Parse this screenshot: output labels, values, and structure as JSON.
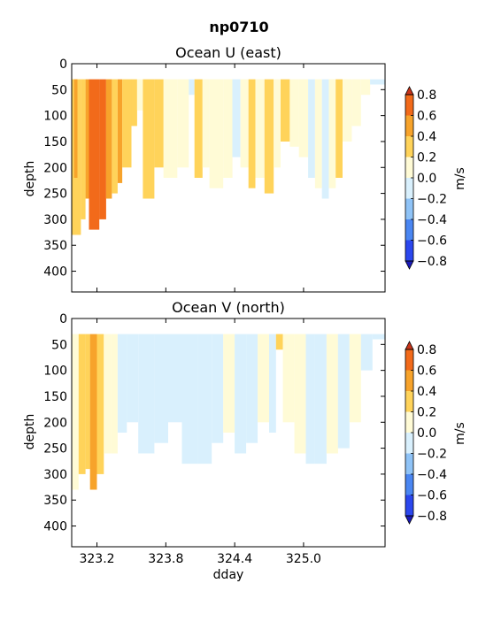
{
  "figure": {
    "suptitle": "np0710"
  },
  "colors": {
    "levels": [
      -0.8,
      -0.6,
      -0.4,
      -0.2,
      0.0,
      0.2,
      0.4,
      0.6,
      0.8
    ],
    "band_colors": [
      "#2b47ee",
      "#4a86f2",
      "#8fc3f7",
      "#d9f0fd",
      "#fffbd6",
      "#ffd35a",
      "#f7a32b",
      "#f26a1a"
    ],
    "under": "#1a1ab8",
    "over": "#c8341a"
  },
  "chart_data": [
    {
      "type": "heatmap",
      "title": "Ocean U (east)",
      "xlabel": "",
      "ylabel": "depth",
      "xlim": [
        322.98,
        325.71
      ],
      "ylim": [
        440,
        0
      ],
      "xticks": [
        323.2,
        323.8,
        324.4,
        325.0
      ],
      "xtick_labels": [
        "",
        "",
        "",
        ""
      ],
      "yticks": [
        0,
        50,
        100,
        150,
        200,
        250,
        300,
        350,
        400
      ],
      "colorbar": {
        "label": "m/s",
        "ticks": [
          "0.8",
          "0.6",
          "0.4",
          "0.2",
          "0.0",
          "−0.2",
          "−0.4",
          "−0.6",
          "−0.8"
        ]
      },
      "top_depth": 30,
      "segments": [
        [
          322.98,
          323.06,
          330,
          0.3
        ],
        [
          323.0,
          323.03,
          220,
          0.5
        ],
        [
          323.06,
          323.1,
          300,
          0.2
        ],
        [
          323.1,
          323.13,
          260,
          0.45
        ],
        [
          323.13,
          323.22,
          320,
          0.65
        ],
        [
          323.22,
          323.28,
          300,
          0.7
        ],
        [
          323.28,
          323.33,
          260,
          0.5
        ],
        [
          323.33,
          323.38,
          250,
          0.3
        ],
        [
          323.38,
          323.42,
          230,
          0.45
        ],
        [
          323.42,
          323.5,
          200,
          0.2
        ],
        [
          323.5,
          323.55,
          120,
          0.3
        ],
        [
          323.55,
          323.6,
          90,
          0.15
        ],
        [
          323.6,
          323.7,
          260,
          0.3
        ],
        [
          323.7,
          323.78,
          200,
          0.25
        ],
        [
          323.78,
          323.9,
          220,
          0.15
        ],
        [
          323.9,
          324.0,
          200,
          0.12
        ],
        [
          324.0,
          324.05,
          60,
          -0.1
        ],
        [
          324.05,
          324.12,
          220,
          0.3
        ],
        [
          324.12,
          324.18,
          200,
          0.15
        ],
        [
          324.18,
          324.3,
          240,
          0.12
        ],
        [
          324.3,
          324.38,
          220,
          0.1
        ],
        [
          324.38,
          324.45,
          180,
          -0.1
        ],
        [
          324.45,
          324.52,
          200,
          0.05
        ],
        [
          324.52,
          324.58,
          240,
          0.3
        ],
        [
          324.58,
          324.66,
          220,
          0.12
        ],
        [
          324.66,
          324.74,
          250,
          0.3
        ],
        [
          324.74,
          324.8,
          200,
          0.12
        ],
        [
          324.8,
          324.88,
          150,
          0.25
        ],
        [
          324.88,
          324.96,
          160,
          0.1
        ],
        [
          324.96,
          325.04,
          180,
          0.06
        ],
        [
          325.04,
          325.1,
          220,
          -0.1
        ],
        [
          325.1,
          325.16,
          240,
          0.12
        ],
        [
          325.16,
          325.22,
          260,
          -0.12
        ],
        [
          325.22,
          325.28,
          240,
          0.1
        ],
        [
          325.28,
          325.34,
          220,
          0.3
        ],
        [
          325.34,
          325.42,
          150,
          0.12
        ],
        [
          325.42,
          325.5,
          120,
          0.05
        ],
        [
          325.5,
          325.58,
          60,
          0.05
        ],
        [
          325.58,
          325.71,
          40,
          -0.05
        ]
      ]
    },
    {
      "type": "heatmap",
      "title": "Ocean V (north)",
      "xlabel": "dday",
      "ylabel": "depth",
      "xlim": [
        322.98,
        325.71
      ],
      "ylim": [
        440,
        0
      ],
      "xticks": [
        323.2,
        323.8,
        324.4,
        325.0
      ],
      "xtick_labels": [
        "323.2",
        "323.8",
        "324.4",
        "325.0"
      ],
      "yticks": [
        0,
        50,
        100,
        150,
        200,
        250,
        300,
        350,
        400
      ],
      "colorbar": {
        "label": "m/s",
        "ticks": [
          "0.8",
          "0.6",
          "0.4",
          "0.2",
          "0.0",
          "−0.2",
          "−0.4",
          "−0.6",
          "−0.8"
        ]
      },
      "top_depth": 30,
      "segments": [
        [
          322.98,
          323.04,
          330,
          0.15
        ],
        [
          323.04,
          323.1,
          300,
          0.3
        ],
        [
          323.1,
          323.14,
          290,
          0.35
        ],
        [
          323.14,
          323.2,
          330,
          0.45
        ],
        [
          323.2,
          323.26,
          300,
          0.25
        ],
        [
          323.26,
          323.32,
          260,
          0.15
        ],
        [
          323.32,
          323.38,
          260,
          0.1
        ],
        [
          323.38,
          323.46,
          220,
          -0.1
        ],
        [
          323.46,
          323.56,
          200,
          -0.12
        ],
        [
          323.56,
          323.7,
          260,
          -0.1
        ],
        [
          323.7,
          323.82,
          240,
          -0.12
        ],
        [
          323.82,
          323.94,
          200,
          -0.1
        ],
        [
          323.94,
          324.08,
          280,
          -0.15
        ],
        [
          324.08,
          324.2,
          280,
          -0.12
        ],
        [
          324.2,
          324.3,
          240,
          -0.1
        ],
        [
          324.3,
          324.4,
          220,
          0.05
        ],
        [
          324.4,
          324.5,
          260,
          -0.1
        ],
        [
          324.5,
          324.6,
          240,
          -0.12
        ],
        [
          324.6,
          324.7,
          200,
          0.1
        ],
        [
          324.7,
          324.76,
          220,
          -0.1
        ],
        [
          324.76,
          324.82,
          60,
          0.3
        ],
        [
          324.82,
          324.92,
          200,
          0.12
        ],
        [
          324.92,
          325.02,
          260,
          0.1
        ],
        [
          325.02,
          325.1,
          280,
          -0.1
        ],
        [
          325.1,
          325.2,
          280,
          -0.12
        ],
        [
          325.2,
          325.3,
          260,
          0.1
        ],
        [
          325.3,
          325.4,
          250,
          -0.1
        ],
        [
          325.4,
          325.5,
          200,
          0.05
        ],
        [
          325.5,
          325.6,
          100,
          -0.05
        ],
        [
          325.6,
          325.71,
          40,
          -0.1
        ]
      ]
    }
  ]
}
